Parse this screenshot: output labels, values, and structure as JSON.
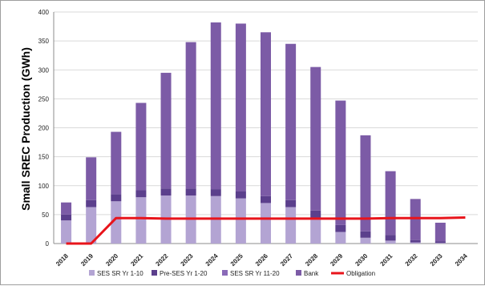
{
  "chart_data": {
    "type": "bar",
    "stacked": true,
    "ylabel": "Small SREC Production (GWh)",
    "ylim": [
      0,
      400
    ],
    "yticks": [
      0,
      50,
      100,
      150,
      200,
      250,
      300,
      350,
      400
    ],
    "categories": [
      "2018",
      "2019",
      "2020",
      "2021",
      "2022",
      "2023",
      "2024",
      "2025",
      "2026",
      "2027",
      "2028",
      "2029",
      "2030",
      "2031",
      "2032",
      "2033",
      "2034"
    ],
    "series": [
      {
        "name": "SES SR Yr 1-10",
        "color": "#b3a4d3",
        "values": [
          40,
          63,
          73,
          80,
          83,
          83,
          82,
          78,
          70,
          63,
          45,
          20,
          10,
          5,
          2,
          1,
          0
        ]
      },
      {
        "name": "Pre-SES Yr 1-20",
        "color": "#5b3f8c",
        "values": [
          10,
          12,
          12,
          12,
          12,
          12,
          12,
          12,
          12,
          12,
          12,
          12,
          11,
          10,
          4,
          3,
          0
        ]
      },
      {
        "name": "SES SR Yr 11-20",
        "color": "#8a6ab8",
        "values": [
          0,
          0,
          0,
          0,
          0,
          0,
          0,
          0,
          0,
          0,
          0,
          0,
          0,
          0,
          0,
          0,
          0
        ]
      },
      {
        "name": "Bank",
        "color": "#7c5ba6",
        "values": [
          21,
          74,
          108,
          151,
          200,
          253,
          288,
          290,
          283,
          270,
          248,
          215,
          166,
          110,
          71,
          32,
          0
        ]
      }
    ],
    "line": {
      "name": "Obligation",
      "color": "#e8141b",
      "values": [
        0,
        0,
        44,
        44,
        43,
        43,
        43,
        43,
        43,
        43,
        43,
        43,
        43,
        44,
        44,
        44,
        45
      ]
    },
    "legend_position": "bottom",
    "grid": true
  }
}
